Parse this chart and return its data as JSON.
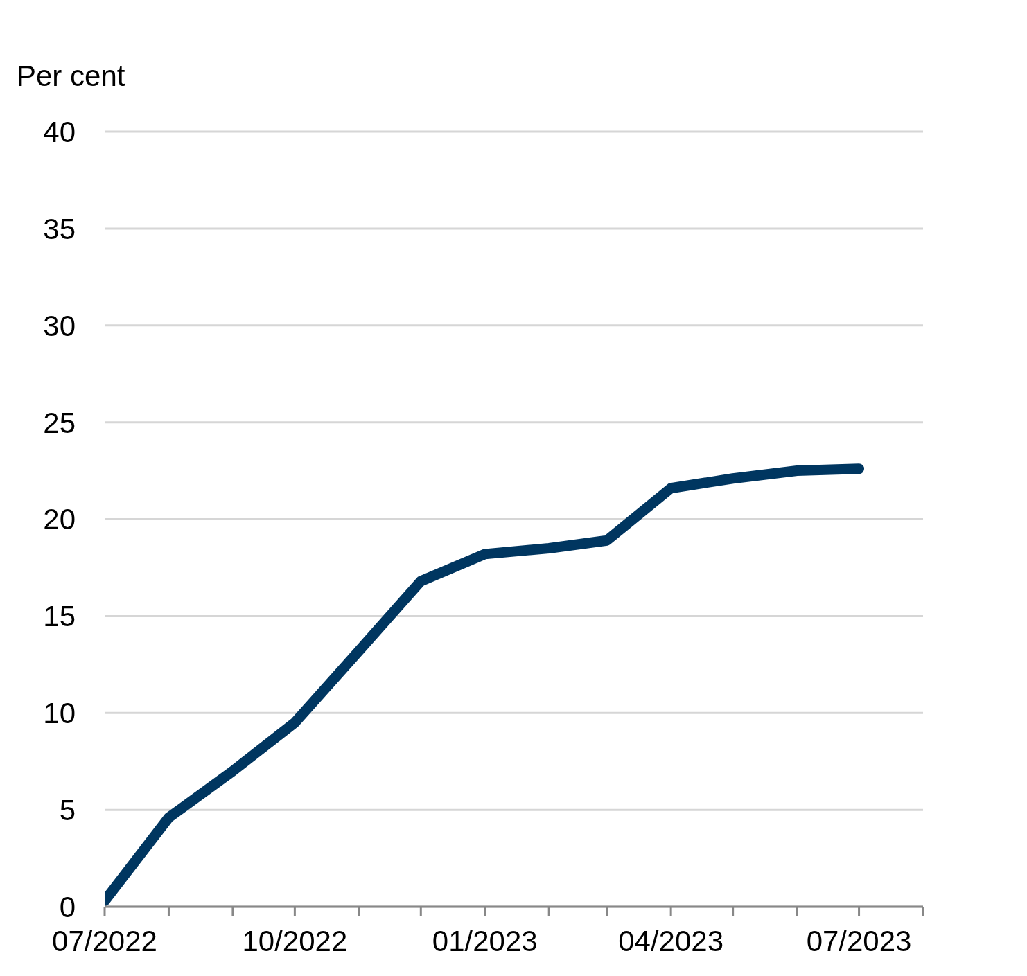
{
  "chart_data": {
    "type": "line",
    "ylabel": "Per cent",
    "x": [
      "2022-07",
      "2022-08",
      "2022-09",
      "2022-10",
      "2022-11",
      "2022-12",
      "2023-01",
      "2023-02",
      "2023-03",
      "2023-04",
      "2023-05",
      "2023-06",
      "2023-07"
    ],
    "series": [
      {
        "color": "#003660",
        "values": [
          0.3,
          4.6,
          7.0,
          9.5,
          13.2,
          16.8,
          18.2,
          18.5,
          18.9,
          21.6,
          22.1,
          22.5,
          22.6
        ]
      }
    ],
    "xlim": [
      "2022-07",
      "2023-08"
    ],
    "xticks": [
      {
        "value": "2022-07",
        "label": "07/2022"
      },
      {
        "value": "2022-08",
        "label": null
      },
      {
        "value": "2022-09",
        "label": null
      },
      {
        "value": "2022-10",
        "label": "10/2022"
      },
      {
        "value": "2022-11",
        "label": null
      },
      {
        "value": "2022-12",
        "label": null
      },
      {
        "value": "2023-01",
        "label": "01/2023"
      },
      {
        "value": "2023-02",
        "label": null
      },
      {
        "value": "2023-03",
        "label": null
      },
      {
        "value": "2023-04",
        "label": "04/2023"
      },
      {
        "value": "2023-05",
        "label": null
      },
      {
        "value": "2023-06",
        "label": null
      },
      {
        "value": "2023-07",
        "label": "07/2023"
      },
      {
        "value": "2023-08",
        "label": null
      }
    ],
    "ylim": [
      0,
      40
    ],
    "yticks": [
      0,
      5,
      10,
      15,
      20,
      25,
      30,
      35,
      40
    ],
    "grid": "y",
    "line_style": "solid"
  }
}
